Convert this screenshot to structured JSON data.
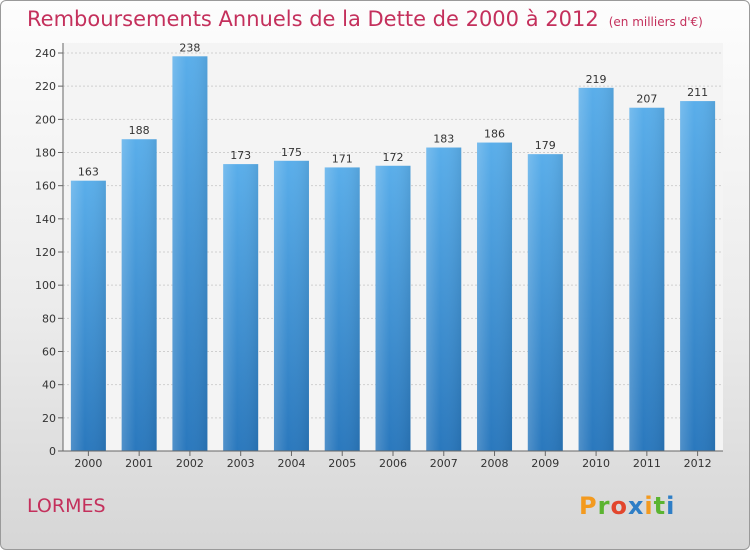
{
  "chart_data": {
    "type": "bar",
    "title": "Remboursements Annuels de la Dette de 2000 à 2012",
    "unit_note": "(en milliers d'€)",
    "categories": [
      "2000",
      "2001",
      "2002",
      "2003",
      "2004",
      "2005",
      "2006",
      "2007",
      "2008",
      "2009",
      "2010",
      "2011",
      "2012"
    ],
    "values": [
      163,
      188,
      238,
      173,
      175,
      171,
      172,
      183,
      186,
      179,
      219,
      207,
      211
    ],
    "ylim": [
      0,
      240
    ],
    "yticks": [
      0,
      20,
      40,
      60,
      80,
      100,
      120,
      140,
      160,
      180,
      200,
      220,
      240
    ],
    "grid": true,
    "bar_color": "#3e94d8",
    "title_color": "#c4305c"
  },
  "location": "LORMES",
  "brand": "Proxiti"
}
